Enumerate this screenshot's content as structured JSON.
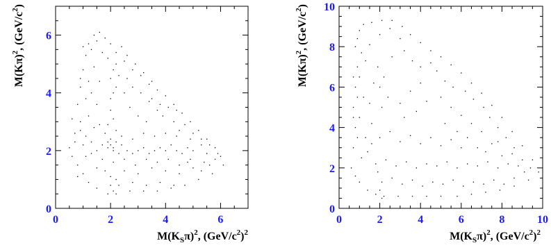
{
  "chart_data": [
    {
      "type": "scatter",
      "title": "",
      "xlabel_main": "M(K",
      "xlabel_sub": "S",
      "xlabel_rest": "π)",
      "xlabel_sup": "2",
      "xlabel_units": ", (GeV/c",
      "xlabel_units_sup": "2",
      "xlabel_units_end": ")",
      "xlabel_units_end_sup": "2",
      "ylabel_main": "M(Kπ)",
      "ylabel_sup": "2",
      "ylabel_units": ", (GeV/c",
      "ylabel_units_sup": "2",
      "ylabel_units_end": ")",
      "xlim": [
        0,
        7
      ],
      "ylim": [
        0,
        7
      ],
      "xticks": [
        0,
        2,
        4,
        6
      ],
      "yticks": [
        0,
        2,
        4,
        6
      ],
      "xtick_labels": [
        "0",
        "2",
        "4",
        "6"
      ],
      "ytick_labels": [
        "0",
        "2",
        "4",
        "6"
      ],
      "grid": false,
      "points": [
        [
          0.5,
          2.1
        ],
        [
          0.6,
          1.8
        ],
        [
          0.7,
          2.3
        ],
        [
          0.8,
          1.5
        ],
        [
          0.9,
          2.7
        ],
        [
          0.6,
          3.1
        ],
        [
          0.8,
          3.6
        ],
        [
          0.9,
          4.2
        ],
        [
          1.0,
          4.8
        ],
        [
          1.1,
          5.3
        ],
        [
          1.2,
          5.7
        ],
        [
          1.4,
          6.0
        ],
        [
          1.6,
          6.1
        ],
        [
          1.8,
          5.9
        ],
        [
          2.0,
          5.7
        ],
        [
          2.2,
          5.4
        ],
        [
          2.5,
          5.1
        ],
        [
          2.8,
          4.8
        ],
        [
          3.1,
          4.6
        ],
        [
          3.4,
          4.3
        ],
        [
          3.7,
          4.1
        ],
        [
          4.0,
          3.9
        ],
        [
          4.3,
          3.6
        ],
        [
          4.6,
          3.3
        ],
        [
          4.9,
          3.0
        ],
        [
          5.2,
          2.7
        ],
        [
          5.5,
          2.4
        ],
        [
          5.8,
          2.1
        ],
        [
          6.0,
          1.8
        ],
        [
          6.1,
          1.5
        ],
        [
          5.7,
          1.2
        ],
        [
          5.2,
          1.0
        ],
        [
          4.7,
          0.8
        ],
        [
          4.2,
          0.7
        ],
        [
          3.7,
          0.6
        ],
        [
          3.2,
          0.6
        ],
        [
          2.7,
          0.6
        ],
        [
          2.2,
          0.5
        ],
        [
          1.9,
          0.5
        ],
        [
          1.5,
          0.7
        ],
        [
          1.2,
          0.9
        ],
        [
          1.0,
          1.2
        ],
        [
          0.8,
          1.1
        ],
        [
          1.5,
          2.0
        ],
        [
          1.7,
          2.2
        ],
        [
          1.9,
          2.3
        ],
        [
          2.1,
          2.1
        ],
        [
          2.3,
          1.9
        ],
        [
          2.0,
          2.4
        ],
        [
          1.8,
          2.6
        ],
        [
          2.2,
          2.7
        ],
        [
          2.4,
          2.2
        ],
        [
          2.6,
          2.0
        ],
        [
          2.8,
          1.9
        ],
        [
          3.0,
          2.0
        ],
        [
          3.2,
          2.1
        ],
        [
          3.4,
          1.9
        ],
        [
          3.6,
          2.0
        ],
        [
          3.8,
          2.1
        ],
        [
          4.0,
          2.0
        ],
        [
          4.2,
          2.2
        ],
        [
          4.4,
          2.0
        ],
        [
          4.6,
          1.9
        ],
        [
          4.8,
          2.1
        ],
        [
          5.0,
          2.0
        ],
        [
          5.3,
          2.2
        ],
        [
          5.5,
          1.9
        ],
        [
          2.0,
          3.8
        ],
        [
          2.1,
          4.0
        ],
        [
          2.2,
          4.2
        ],
        [
          2.0,
          4.5
        ],
        [
          2.1,
          4.8
        ],
        [
          2.2,
          5.0
        ],
        [
          1.9,
          5.2
        ],
        [
          2.0,
          3.4
        ],
        [
          2.1,
          3.1
        ],
        [
          1.9,
          2.9
        ],
        [
          3.5,
          3.8
        ],
        [
          3.8,
          3.6
        ],
        [
          4.1,
          3.5
        ],
        [
          3.9,
          3.2
        ],
        [
          4.3,
          3.0
        ],
        [
          4.5,
          2.7
        ],
        [
          3.0,
          3.2
        ],
        [
          3.3,
          3.0
        ],
        [
          2.7,
          3.5
        ],
        [
          2.5,
          4.0
        ],
        [
          1.3,
          4.0
        ],
        [
          1.5,
          3.6
        ],
        [
          1.2,
          3.2
        ],
        [
          1.4,
          2.8
        ],
        [
          1.1,
          2.5
        ],
        [
          1.6,
          4.4
        ],
        [
          1.4,
          4.9
        ],
        [
          1.7,
          5.4
        ],
        [
          2.4,
          5.6
        ],
        [
          2.6,
          5.3
        ],
        [
          2.9,
          5.0
        ],
        [
          3.2,
          4.7
        ],
        [
          3.5,
          4.4
        ],
        [
          3.0,
          1.2
        ],
        [
          3.5,
          1.4
        ],
        [
          4.0,
          1.3
        ],
        [
          4.5,
          1.2
        ],
        [
          5.0,
          1.4
        ],
        [
          2.5,
          1.3
        ],
        [
          2.0,
          1.1
        ],
        [
          1.5,
          1.4
        ],
        [
          1.1,
          1.8
        ],
        [
          2.3,
          0.8
        ],
        [
          2.8,
          0.9
        ],
        [
          3.3,
          0.8
        ],
        [
          3.8,
          0.9
        ],
        [
          4.3,
          0.8
        ],
        [
          4.8,
          1.6
        ],
        [
          5.4,
          1.6
        ],
        [
          5.8,
          1.7
        ],
        [
          0.7,
          2.6
        ],
        [
          1.0,
          2.2
        ],
        [
          1.3,
          1.9
        ],
        [
          0.9,
          3.0
        ],
        [
          1.1,
          3.8
        ],
        [
          0.9,
          4.5
        ],
        [
          1.2,
          4.4
        ],
        [
          1.0,
          5.6
        ],
        [
          1.3,
          5.5
        ],
        [
          1.5,
          5.8
        ],
        [
          2.3,
          4.6
        ],
        [
          2.6,
          4.5
        ],
        [
          2.8,
          4.2
        ],
        [
          3.1,
          4.0
        ],
        [
          3.4,
          3.7
        ],
        [
          3.7,
          3.4
        ],
        [
          4.4,
          3.4
        ],
        [
          4.7,
          2.9
        ],
        [
          5.0,
          2.6
        ],
        [
          5.3,
          2.4
        ],
        [
          5.6,
          2.2
        ],
        [
          5.9,
          1.9
        ],
        [
          4.9,
          2.4
        ],
        [
          4.4,
          2.5
        ],
        [
          4.0,
          2.6
        ],
        [
          3.6,
          2.5
        ],
        [
          3.2,
          2.6
        ],
        [
          2.8,
          2.4
        ],
        [
          2.4,
          2.5
        ],
        [
          1.6,
          2.9
        ],
        [
          1.3,
          2.3
        ],
        [
          1.7,
          1.7
        ],
        [
          2.1,
          1.6
        ],
        [
          2.5,
          1.7
        ],
        [
          2.9,
          1.5
        ],
        [
          3.3,
          1.7
        ],
        [
          3.7,
          1.6
        ],
        [
          4.1,
          1.7
        ],
        [
          4.5,
          1.5
        ],
        [
          4.9,
          1.7
        ],
        [
          5.3,
          1.3
        ],
        [
          5.6,
          1.5
        ],
        [
          2.1,
          2.0
        ],
        [
          1.9,
          2.1
        ],
        [
          2.0,
          2.2
        ],
        [
          2.2,
          2.3
        ],
        [
          2.1,
          0.6
        ],
        [
          2.0,
          0.8
        ],
        [
          2.2,
          1.0
        ],
        [
          1.8,
          1.3
        ]
      ]
    },
    {
      "type": "scatter",
      "title": "",
      "xlabel_main": "M(K",
      "xlabel_sub": "S",
      "xlabel_rest": "π)",
      "xlabel_sup": "2",
      "xlabel_units": ", (GeV/c",
      "xlabel_units_sup": "2",
      "xlabel_units_end": ")",
      "xlabel_units_end_sup": "2",
      "ylabel_main": "M(Kπ)",
      "ylabel_sup": "2",
      "ylabel_units": ", (GeV/c",
      "ylabel_units_sup": "2",
      "ylabel_units_end": ")",
      "xlim": [
        0,
        10
      ],
      "ylim": [
        0,
        10
      ],
      "xticks": [
        0,
        2,
        4,
        6,
        8,
        10
      ],
      "yticks": [
        0,
        2,
        4,
        6,
        8,
        10
      ],
      "xtick_labels": [
        "0",
        "2",
        "4",
        "6",
        "8",
        "10"
      ],
      "ytick_labels": [
        "0",
        "2",
        "4",
        "6",
        "8",
        "10"
      ],
      "grid": false,
      "points": [
        [
          0.6,
          2.0
        ],
        [
          0.7,
          3.0
        ],
        [
          0.8,
          4.0
        ],
        [
          0.7,
          5.0
        ],
        [
          0.8,
          6.0
        ],
        [
          0.9,
          7.0
        ],
        [
          0.8,
          8.0
        ],
        [
          1.0,
          8.8
        ],
        [
          1.2,
          9.1
        ],
        [
          1.6,
          9.2
        ],
        [
          2.1,
          9.3
        ],
        [
          2.6,
          9.3
        ],
        [
          3.1,
          9.0
        ],
        [
          3.5,
          8.6
        ],
        [
          4.0,
          8.2
        ],
        [
          4.5,
          7.8
        ],
        [
          5.0,
          7.5
        ],
        [
          5.5,
          7.1
        ],
        [
          6.0,
          6.7
        ],
        [
          6.5,
          6.2
        ],
        [
          7.0,
          5.7
        ],
        [
          7.5,
          5.1
        ],
        [
          8.0,
          4.5
        ],
        [
          8.5,
          3.8
        ],
        [
          9.0,
          3.1
        ],
        [
          9.5,
          2.4
        ],
        [
          9.8,
          1.8
        ],
        [
          9.3,
          1.4
        ],
        [
          8.6,
          1.1
        ],
        [
          7.9,
          0.9
        ],
        [
          7.2,
          0.8
        ],
        [
          6.5,
          0.7
        ],
        [
          5.8,
          0.6
        ],
        [
          5.0,
          0.6
        ],
        [
          4.3,
          0.6
        ],
        [
          3.6,
          0.6
        ],
        [
          2.9,
          0.6
        ],
        [
          2.2,
          0.6
        ],
        [
          1.8,
          0.7
        ],
        [
          1.4,
          0.9
        ],
        [
          1.0,
          1.3
        ],
        [
          0.8,
          1.6
        ],
        [
          1.1,
          2.5
        ],
        [
          1.3,
          3.5
        ],
        [
          1.0,
          4.5
        ],
        [
          1.2,
          5.5
        ],
        [
          1.0,
          6.5
        ],
        [
          1.3,
          7.3
        ],
        [
          1.5,
          8.1
        ],
        [
          2.0,
          8.6
        ],
        [
          2.5,
          8.9
        ],
        [
          3.0,
          8.4
        ],
        [
          1.8,
          2.2
        ],
        [
          2.3,
          2.4
        ],
        [
          2.8,
          2.1
        ],
        [
          3.3,
          2.3
        ],
        [
          3.8,
          2.0
        ],
        [
          4.3,
          2.2
        ],
        [
          4.8,
          2.1
        ],
        [
          5.3,
          2.3
        ],
        [
          5.8,
          2.0
        ],
        [
          6.3,
          2.2
        ],
        [
          6.8,
          2.1
        ],
        [
          7.3,
          2.3
        ],
        [
          7.8,
          2.0
        ],
        [
          8.3,
          2.2
        ],
        [
          8.8,
          2.1
        ],
        [
          2.1,
          1.3
        ],
        [
          2.6,
          1.5
        ],
        [
          3.1,
          1.2
        ],
        [
          3.6,
          1.4
        ],
        [
          4.1,
          1.1
        ],
        [
          4.6,
          1.3
        ],
        [
          5.1,
          1.2
        ],
        [
          5.6,
          1.4
        ],
        [
          6.1,
          1.1
        ],
        [
          6.6,
          1.3
        ],
        [
          7.1,
          1.2
        ],
        [
          7.6,
          1.4
        ],
        [
          8.1,
          1.2
        ],
        [
          8.6,
          1.5
        ],
        [
          9.1,
          1.8
        ],
        [
          4.8,
          6.8
        ],
        [
          5.2,
          6.3
        ],
        [
          5.6,
          6.0
        ],
        [
          6.2,
          5.8
        ],
        [
          6.6,
          5.4
        ],
        [
          7.1,
          5.0
        ],
        [
          7.4,
          4.5
        ],
        [
          7.8,
          4.0
        ],
        [
          8.2,
          3.5
        ],
        [
          8.6,
          3.0
        ],
        [
          4.5,
          7.2
        ],
        [
          5.0,
          5.5
        ],
        [
          5.5,
          5.0
        ],
        [
          6.0,
          4.6
        ],
        [
          6.5,
          4.2
        ],
        [
          7.0,
          3.8
        ],
        [
          7.5,
          3.2
        ],
        [
          2.0,
          3.5
        ],
        [
          2.5,
          3.8
        ],
        [
          3.0,
          3.3
        ],
        [
          3.5,
          3.6
        ],
        [
          4.0,
          3.2
        ],
        [
          4.5,
          3.5
        ],
        [
          5.0,
          3.1
        ],
        [
          5.5,
          3.4
        ],
        [
          6.0,
          3.0
        ],
        [
          2.1,
          5.0
        ],
        [
          2.4,
          5.5
        ],
        [
          2.0,
          6.0
        ],
        [
          2.2,
          6.5
        ],
        [
          1.9,
          7.0
        ],
        [
          2.6,
          7.5
        ],
        [
          3.2,
          7.8
        ],
        [
          3.6,
          7.3
        ],
        [
          4.0,
          7.0
        ],
        [
          1.6,
          4.2
        ],
        [
          1.5,
          5.2
        ],
        [
          1.7,
          6.2
        ],
        [
          1.6,
          3.2
        ],
        [
          1.4,
          2.8
        ],
        [
          2.0,
          0.9
        ],
        [
          2.1,
          0.5
        ],
        [
          1.9,
          1.8
        ],
        [
          3.0,
          5.2
        ],
        [
          3.5,
          5.8
        ],
        [
          4.0,
          6.2
        ],
        [
          3.2,
          4.5
        ],
        [
          3.8,
          4.8
        ],
        [
          4.3,
          5.3
        ],
        [
          8.0,
          2.6
        ],
        [
          8.5,
          2.7
        ],
        [
          9.0,
          2.4
        ],
        [
          9.4,
          2.0
        ],
        [
          6.8,
          3.0
        ],
        [
          7.2,
          2.8
        ],
        [
          7.8,
          3.3
        ],
        [
          5.2,
          4.2
        ],
        [
          5.8,
          3.8
        ],
        [
          6.3,
          3.5
        ],
        [
          0.9,
          3.5
        ],
        [
          0.7,
          4.5
        ],
        [
          0.9,
          5.5
        ],
        [
          0.7,
          6.5
        ],
        [
          1.1,
          7.7
        ],
        [
          0.9,
          8.4
        ]
      ]
    }
  ]
}
